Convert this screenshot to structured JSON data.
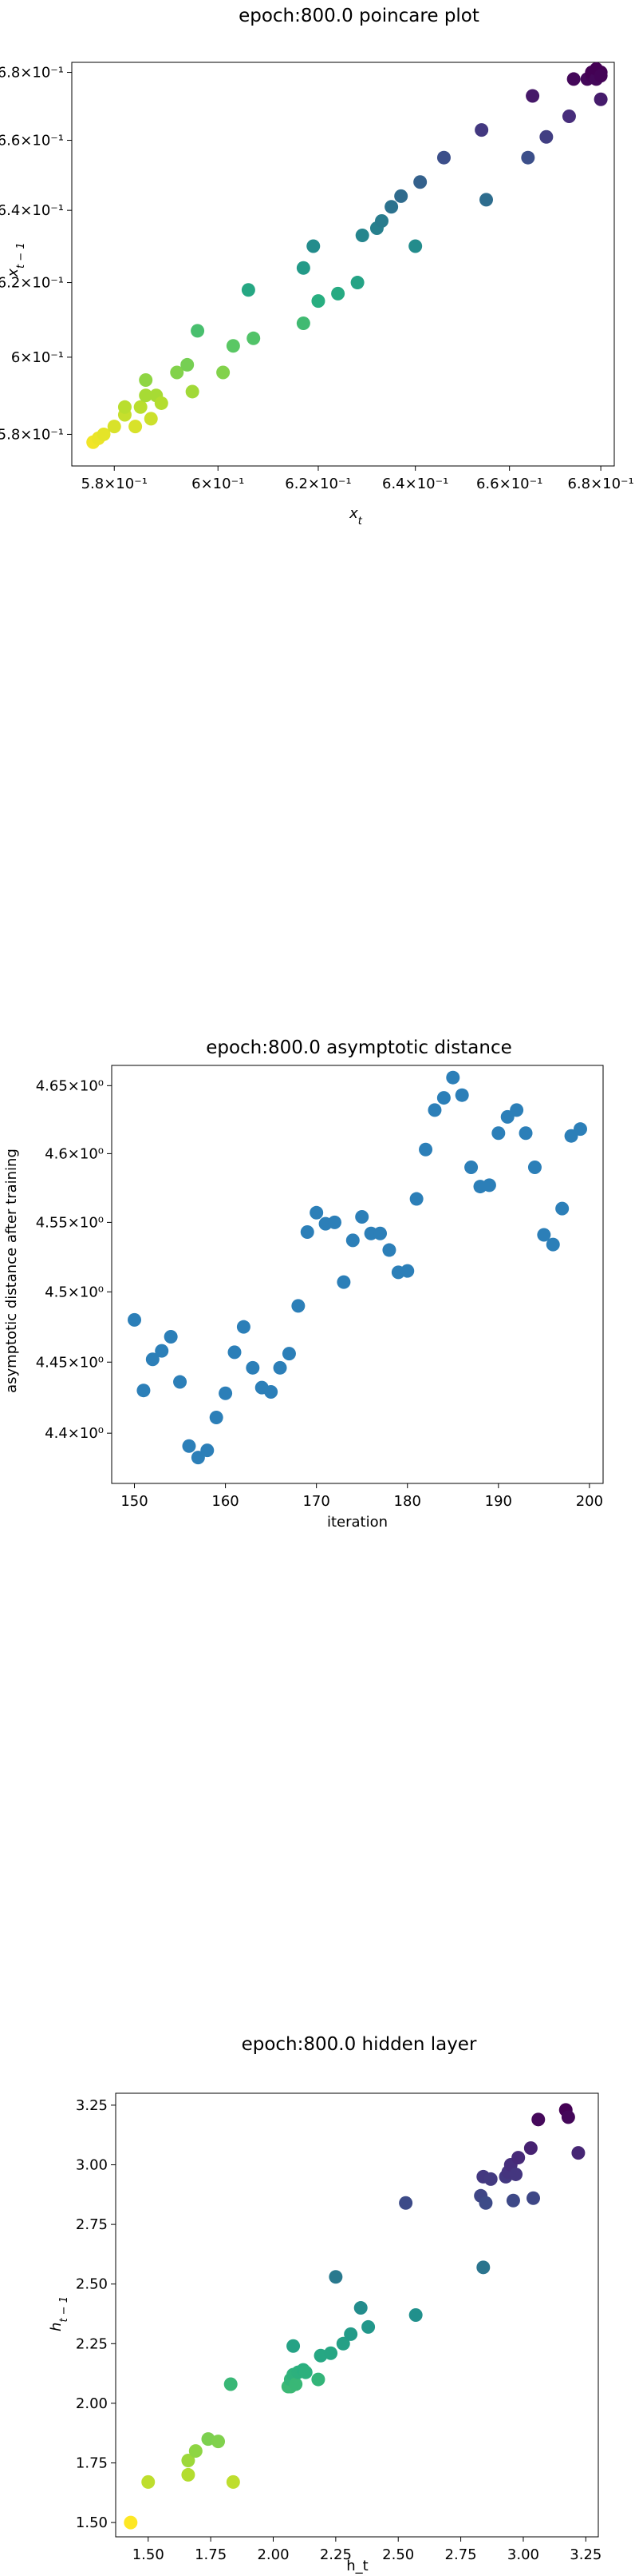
{
  "chart_data": [
    {
      "type": "scatter",
      "title": "epoch:800.0 poincare plot",
      "xlabel": "x_t",
      "ylabel": "x_{t-1}",
      "xscale": "log",
      "yscale": "log",
      "xlim": [
        0.572,
        0.683
      ],
      "ylim": [
        0.572,
        0.683
      ],
      "xticks": [
        0.58,
        0.6,
        0.62,
        0.64,
        0.66,
        0.68
      ],
      "xtick_labels": [
        "5.8×10⁻¹",
        "6×10⁻¹",
        "6.2×10⁻¹",
        "6.4×10⁻¹",
        "6.6×10⁻¹",
        "6.8×10⁻¹"
      ],
      "yticks": [
        0.58,
        0.6,
        0.62,
        0.64,
        0.66,
        0.68
      ],
      "ytick_labels": [
        "5.8×10⁻¹",
        "6×10⁻¹",
        "6.2×10⁻¹",
        "6.4×10⁻¹",
        "6.6×10⁻¹",
        "6.8×10⁻¹"
      ],
      "colormap": "viridis",
      "color_range": [
        0.576,
        0.68
      ],
      "points": [
        [
          0.576,
          0.578
        ],
        [
          0.577,
          0.579
        ],
        [
          0.578,
          0.58
        ],
        [
          0.58,
          0.582
        ],
        [
          0.582,
          0.585
        ],
        [
          0.582,
          0.587
        ],
        [
          0.584,
          0.582
        ],
        [
          0.585,
          0.587
        ],
        [
          0.586,
          0.59
        ],
        [
          0.586,
          0.594
        ],
        [
          0.587,
          0.584
        ],
        [
          0.588,
          0.59
        ],
        [
          0.589,
          0.588
        ],
        [
          0.592,
          0.596
        ],
        [
          0.594,
          0.598
        ],
        [
          0.595,
          0.591
        ],
        [
          0.596,
          0.607
        ],
        [
          0.601,
          0.596
        ],
        [
          0.603,
          0.603
        ],
        [
          0.606,
          0.618
        ],
        [
          0.607,
          0.605
        ],
        [
          0.617,
          0.609
        ],
        [
          0.617,
          0.624
        ],
        [
          0.619,
          0.63
        ],
        [
          0.62,
          0.615
        ],
        [
          0.624,
          0.617
        ],
        [
          0.628,
          0.62
        ],
        [
          0.629,
          0.633
        ],
        [
          0.632,
          0.635
        ],
        [
          0.633,
          0.637
        ],
        [
          0.635,
          0.641
        ],
        [
          0.637,
          0.644
        ],
        [
          0.64,
          0.63
        ],
        [
          0.641,
          0.648
        ],
        [
          0.646,
          0.655
        ],
        [
          0.654,
          0.663
        ],
        [
          0.655,
          0.643
        ],
        [
          0.664,
          0.655
        ],
        [
          0.665,
          0.673
        ],
        [
          0.668,
          0.661
        ],
        [
          0.673,
          0.667
        ],
        [
          0.674,
          0.678
        ],
        [
          0.677,
          0.678
        ],
        [
          0.678,
          0.679
        ],
        [
          0.678,
          0.68
        ],
        [
          0.679,
          0.678
        ],
        [
          0.679,
          0.681
        ],
        [
          0.68,
          0.68
        ],
        [
          0.68,
          0.679
        ],
        [
          0.68,
          0.672
        ]
      ]
    },
    {
      "type": "scatter",
      "title": "epoch:800.0 asymptotic distance",
      "xlabel": "iteration",
      "ylabel": "asymptotic distance after training",
      "yscale": "log",
      "xlim": [
        147.5,
        201.5
      ],
      "ylim": [
        4.365,
        4.665
      ],
      "xticks": [
        150,
        160,
        170,
        180,
        190,
        200
      ],
      "xtick_labels": [
        "150",
        "160",
        "170",
        "180",
        "190",
        "200"
      ],
      "yticks": [
        4.4,
        4.45,
        4.5,
        4.55,
        4.6,
        4.65
      ],
      "ytick_labels": [
        "4.4×10⁰",
        "4.45×10⁰",
        "4.5×10⁰",
        "4.55×10⁰",
        "4.6×10⁰",
        "4.65×10⁰"
      ],
      "color": "#2c7fb8",
      "x": [
        150,
        151,
        152,
        153,
        154,
        155,
        156,
        157,
        158,
        159,
        160,
        161,
        162,
        163,
        164,
        165,
        166,
        167,
        168,
        169,
        170,
        171,
        172,
        173,
        174,
        175,
        176,
        177,
        178,
        179,
        180,
        181,
        182,
        183,
        184,
        185,
        186,
        187,
        188,
        189,
        190,
        191,
        192,
        193,
        194,
        195,
        196,
        197,
        198,
        199
      ],
      "y": [
        4.48,
        4.43,
        4.452,
        4.458,
        4.468,
        4.436,
        4.391,
        4.383,
        4.388,
        4.411,
        4.428,
        4.457,
        4.475,
        4.446,
        4.432,
        4.429,
        4.446,
        4.456,
        4.49,
        4.543,
        4.557,
        4.549,
        4.55,
        4.507,
        4.537,
        4.554,
        4.542,
        4.542,
        4.53,
        4.514,
        4.515,
        4.567,
        4.603,
        4.632,
        4.641,
        4.656,
        4.643,
        4.59,
        4.576,
        4.577,
        4.615,
        4.627,
        4.632,
        4.615,
        4.59,
        4.541,
        4.534,
        4.56,
        4.613,
        4.618
      ]
    },
    {
      "type": "scatter",
      "title": "epoch:800.0 hidden layer",
      "xlabel": "h_t",
      "ylabel": "h_{t-1}",
      "xlim": [
        1.37,
        3.3
      ],
      "ylim": [
        1.44,
        3.3
      ],
      "xticks": [
        1.5,
        1.75,
        2.0,
        2.25,
        2.5,
        2.75,
        3.0,
        3.25
      ],
      "xtick_labels": [
        "1.50",
        "1.75",
        "2.00",
        "2.25",
        "2.50",
        "2.75",
        "3.00",
        "3.25"
      ],
      "yticks": [
        1.5,
        1.75,
        2.0,
        2.25,
        2.5,
        2.75,
        3.0,
        3.25
      ],
      "ytick_labels": [
        "1.50",
        "1.75",
        "2.00",
        "2.25",
        "2.50",
        "2.75",
        "3.00",
        "3.25"
      ],
      "colormap": "viridis",
      "color_range": [
        1.5,
        3.23
      ],
      "points": [
        [
          1.43,
          1.5
        ],
        [
          1.5,
          1.67
        ],
        [
          1.66,
          1.7
        ],
        [
          1.66,
          1.76
        ],
        [
          1.69,
          1.8
        ],
        [
          1.74,
          1.85
        ],
        [
          1.78,
          1.84
        ],
        [
          1.83,
          2.08
        ],
        [
          1.84,
          1.67
        ],
        [
          2.06,
          2.07
        ],
        [
          2.07,
          2.07
        ],
        [
          2.07,
          2.1
        ],
        [
          2.08,
          2.24
        ],
        [
          2.08,
          2.12
        ],
        [
          2.09,
          2.08
        ],
        [
          2.1,
          2.13
        ],
        [
          2.12,
          2.14
        ],
        [
          2.13,
          2.13
        ],
        [
          2.18,
          2.1
        ],
        [
          2.19,
          2.2
        ],
        [
          2.23,
          2.21
        ],
        [
          2.25,
          2.53
        ],
        [
          2.28,
          2.25
        ],
        [
          2.31,
          2.29
        ],
        [
          2.35,
          2.4
        ],
        [
          2.38,
          2.32
        ],
        [
          2.53,
          2.84
        ],
        [
          2.57,
          2.37
        ],
        [
          2.83,
          2.87
        ],
        [
          2.84,
          2.57
        ],
        [
          2.84,
          2.95
        ],
        [
          2.85,
          2.84
        ],
        [
          2.87,
          2.94
        ],
        [
          2.93,
          2.95
        ],
        [
          2.94,
          2.97
        ],
        [
          2.95,
          3.0
        ],
        [
          2.96,
          2.85
        ],
        [
          2.97,
          2.96
        ],
        [
          2.98,
          3.03
        ],
        [
          3.03,
          3.07
        ],
        [
          3.04,
          2.86
        ],
        [
          3.06,
          3.19
        ],
        [
          3.17,
          3.23
        ],
        [
          3.18,
          3.2
        ],
        [
          3.22,
          3.05
        ]
      ]
    }
  ]
}
